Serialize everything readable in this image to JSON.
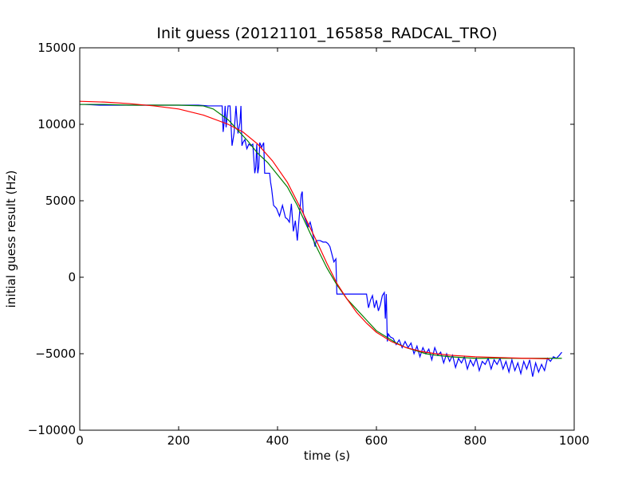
{
  "chart_data": {
    "type": "line",
    "title": "Init guess (20121101_165858_RADCAL_TRO)",
    "xlabel": "time (s)",
    "ylabel": "initial guess result (Hz)",
    "xlim": [
      0,
      1000
    ],
    "ylim": [
      -10000,
      15000
    ],
    "x_ticks": [
      0,
      200,
      400,
      600,
      800,
      1000
    ],
    "y_ticks": [
      -10000,
      -5000,
      0,
      5000,
      10000,
      15000
    ],
    "x_tick_labels": [
      "0",
      "200",
      "400",
      "600",
      "800",
      "1000"
    ],
    "y_tick_labels": [
      "−10000",
      "−5000",
      "0",
      "5000",
      "10000",
      "15000"
    ],
    "grid": false,
    "legend": "none",
    "series": [
      {
        "color": "#0000ff",
        "x": [
          0,
          10,
          40,
          80,
          120,
          160,
          200,
          240,
          260,
          280,
          288,
          290,
          292,
          294,
          296,
          300,
          304,
          308,
          312,
          316,
          320,
          324,
          326,
          328,
          330,
          334,
          338,
          342,
          346,
          350,
          354,
          356,
          358,
          360,
          362,
          364,
          368,
          372,
          374,
          376,
          380,
          384,
          386,
          388,
          392,
          398,
          404,
          410,
          416,
          420,
          424,
          428,
          432,
          436,
          440,
          444,
          448,
          450,
          452,
          456,
          462,
          466,
          470,
          474,
          476,
          478,
          480,
          486,
          492,
          498,
          502,
          504,
          506,
          510,
          514,
          518,
          520,
          522,
          524,
          528,
          540,
          560,
          580,
          584,
          588,
          592,
          596,
          600,
          604,
          608,
          612,
          616,
          618,
          620,
          622,
          624,
          628,
          634,
          640,
          646,
          652,
          658,
          664,
          670,
          676,
          682,
          688,
          694,
          700,
          706,
          712,
          718,
          724,
          730,
          736,
          742,
          748,
          754,
          760,
          766,
          772,
          778,
          784,
          790,
          796,
          802,
          808,
          814,
          820,
          826,
          832,
          838,
          844,
          850,
          856,
          862,
          868,
          874,
          880,
          886,
          892,
          898,
          904,
          910,
          916,
          922,
          928,
          934,
          940,
          946,
          952,
          958,
          964,
          970,
          975
        ],
        "y": [
          11300,
          11300,
          11250,
          11250,
          11250,
          11250,
          11250,
          11250,
          11200,
          11200,
          11200,
          9500,
          10100,
          11200,
          9800,
          11200,
          11200,
          8600,
          9400,
          11200,
          9400,
          10100,
          11200,
          8600,
          8800,
          9000,
          8400,
          8700,
          8600,
          8700,
          6800,
          7200,
          8700,
          6800,
          7200,
          8800,
          8500,
          8800,
          6800,
          6800,
          6800,
          6800,
          6200,
          5800,
          4700,
          4500,
          4000,
          4700,
          3900,
          3800,
          3600,
          4800,
          3000,
          3700,
          2400,
          4000,
          5400,
          5600,
          4200,
          3800,
          3300,
          3600,
          3100,
          2300,
          2000,
          2400,
          2400,
          2400,
          2300,
          2300,
          2200,
          2100,
          2000,
          1500,
          1000,
          1200,
          -1100,
          -1100,
          -1100,
          -1100,
          -1100,
          -1100,
          -1100,
          -2000,
          -1500,
          -1200,
          -2000,
          -1500,
          -2200,
          -1800,
          -1200,
          -1000,
          -2700,
          -1100,
          -4200,
          -3700,
          -3900,
          -4000,
          -4400,
          -4100,
          -4600,
          -4200,
          -4600,
          -4300,
          -5000,
          -4500,
          -5200,
          -4600,
          -5000,
          -4700,
          -5400,
          -4600,
          -5100,
          -4900,
          -5600,
          -5000,
          -5500,
          -5100,
          -5900,
          -5300,
          -5600,
          -5200,
          -6000,
          -5400,
          -5800,
          -5300,
          -6100,
          -5500,
          -5700,
          -5300,
          -6000,
          -5400,
          -5700,
          -5300,
          -6000,
          -5500,
          -6200,
          -5400,
          -6100,
          -5600,
          -6300,
          -5500,
          -6000,
          -5400,
          -6500,
          -5600,
          -6200,
          -5700,
          -6100,
          -5300,
          -5500,
          -5200,
          -5300,
          -5100,
          -4900
        ]
      },
      {
        "color": "#008000",
        "x": [
          0,
          50,
          100,
          150,
          200,
          250,
          270,
          300,
          320,
          340,
          360,
          380,
          400,
          420,
          440,
          460,
          480,
          500,
          520,
          540,
          560,
          580,
          600,
          620,
          640,
          660,
          680,
          700,
          720,
          750,
          800,
          850,
          900,
          950,
          975
        ],
        "y": [
          11300,
          11300,
          11250,
          11250,
          11250,
          11200,
          11000,
          10300,
          9600,
          8900,
          8100,
          7500,
          6700,
          5900,
          4700,
          3300,
          1900,
          600,
          -500,
          -1400,
          -2100,
          -2800,
          -3500,
          -3900,
          -4300,
          -4600,
          -4800,
          -5000,
          -5100,
          -5200,
          -5300,
          -5300,
          -5300,
          -5300,
          -5300
        ]
      },
      {
        "color": "#ff0000",
        "x": [
          0,
          50,
          100,
          150,
          200,
          250,
          300,
          330,
          360,
          390,
          420,
          450,
          480,
          500,
          520,
          540,
          560,
          580,
          600,
          630,
          660,
          690,
          720,
          750,
          800,
          850,
          900,
          950
        ],
        "y": [
          11500,
          11450,
          11350,
          11200,
          11000,
          10600,
          10000,
          9500,
          8700,
          7600,
          6200,
          4300,
          2300,
          900,
          -400,
          -1400,
          -2300,
          -3000,
          -3600,
          -4200,
          -4600,
          -4850,
          -5000,
          -5100,
          -5200,
          -5250,
          -5300,
          -5330
        ]
      }
    ]
  }
}
